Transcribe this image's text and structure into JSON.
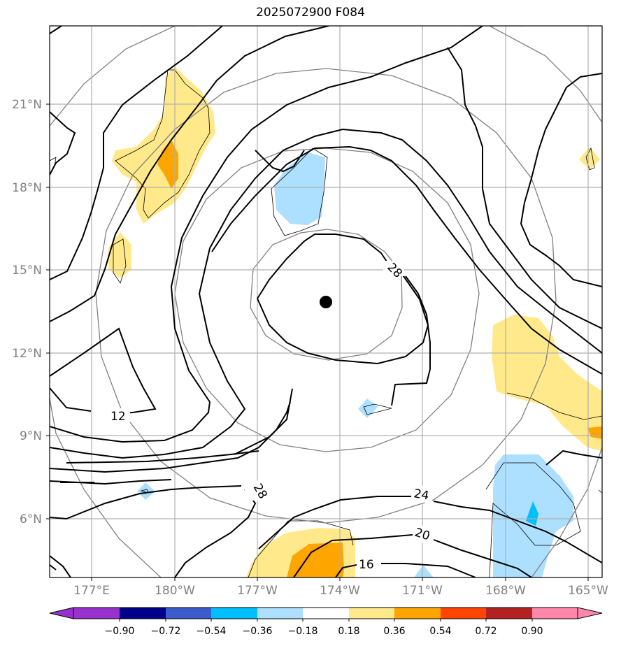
{
  "title": "2025072900 F084",
  "map": {
    "lat_labels": [
      "21°N",
      "18°N",
      "15°N",
      "12°N",
      "9°N",
      "6°N"
    ],
    "lon_labels": [
      "177°E",
      "180°W",
      "177°W",
      "174°W",
      "171°W",
      "168°W",
      "165°W"
    ],
    "center_marker": {
      "lat": 13.9,
      "lon": -174.5
    },
    "contour_labels": [
      "28",
      "12",
      "28",
      "24",
      "20",
      "16"
    ]
  },
  "colorbar": {
    "colors": [
      "#9932cc",
      "#00008b",
      "#3a5ccc",
      "#00bfff",
      "#addfff",
      "#ffffff",
      "#ffe98a",
      "#ffa500",
      "#ff4500",
      "#b22222",
      "#ff88aa"
    ],
    "tick_labels": [
      "−0.90",
      "−0.72",
      "−0.54",
      "−0.36",
      "−0.18",
      "0.18",
      "0.36",
      "0.54",
      "0.72",
      "0.90"
    ]
  }
}
